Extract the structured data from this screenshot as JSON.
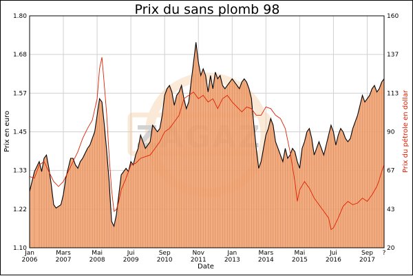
{
  "chart_data": {
    "type": "area",
    "title": "Prix du sans plomb 98",
    "xlabel": "Date",
    "ylabel_left": "Prix en euro",
    "ylabel_right": "Prix du pétrole en dollar",
    "y_left_ticks": [
      "1.10",
      "1.22",
      "1.33",
      "1.45",
      "1.57",
      "1.68",
      "1.80"
    ],
    "y_right_ticks": [
      "20",
      "43",
      "67",
      "90",
      "113",
      "137",
      "160"
    ],
    "ylim_left": [
      1.1,
      1.8
    ],
    "ylim_right": [
      20,
      160
    ],
    "x_ticks": [
      {
        "month": "Jan",
        "year": "2006",
        "t": 0
      },
      {
        "month": "Mars",
        "year": "2007",
        "t": 14
      },
      {
        "month": "Mai",
        "year": "2008",
        "t": 28
      },
      {
        "month": "Jui",
        "year": "2009",
        "t": 42
      },
      {
        "month": "Sep",
        "year": "2010",
        "t": 56
      },
      {
        "month": "Nov",
        "year": "2011",
        "t": 70
      },
      {
        "month": "Jan",
        "year": "2013",
        "t": 84
      },
      {
        "month": "Mars",
        "year": "2014",
        "t": 98
      },
      {
        "month": "Mai",
        "year": "2015",
        "t": 112
      },
      {
        "month": "Jui",
        "year": "2016",
        "t": 126
      },
      {
        "month": "Sep",
        "year": "2017",
        "t": 140
      },
      {
        "month": "?",
        "year": "",
        "t": 147
      }
    ],
    "x_range_months": [
      0,
      147
    ],
    "watermark": "ZAGAZ",
    "grid": true,
    "series": [
      {
        "color": "#000000",
        "fill": "#f0a070",
        "axis": "left",
        "points": [
          [
            0,
            1.27
          ],
          [
            2,
            1.33
          ],
          [
            4,
            1.36
          ],
          [
            5,
            1.33
          ],
          [
            6,
            1.37
          ],
          [
            7,
            1.38
          ],
          [
            8,
            1.34
          ],
          [
            9,
            1.29
          ],
          [
            10,
            1.23
          ],
          [
            11,
            1.22
          ],
          [
            12,
            1.225
          ],
          [
            13,
            1.23
          ],
          [
            14,
            1.26
          ],
          [
            15,
            1.31
          ],
          [
            16,
            1.34
          ],
          [
            17,
            1.37
          ],
          [
            18,
            1.37
          ],
          [
            19,
            1.35
          ],
          [
            20,
            1.34
          ],
          [
            21,
            1.36
          ],
          [
            22,
            1.37
          ],
          [
            23,
            1.385
          ],
          [
            24,
            1.4
          ],
          [
            25,
            1.41
          ],
          [
            26,
            1.43
          ],
          [
            27,
            1.45
          ],
          [
            28,
            1.5
          ],
          [
            29,
            1.55
          ],
          [
            30,
            1.54
          ],
          [
            31,
            1.47
          ],
          [
            32,
            1.39
          ],
          [
            33,
            1.3
          ],
          [
            34,
            1.18
          ],
          [
            35,
            1.165
          ],
          [
            36,
            1.2
          ],
          [
            37,
            1.26
          ],
          [
            38,
            1.32
          ],
          [
            39,
            1.33
          ],
          [
            40,
            1.34
          ],
          [
            41,
            1.33
          ],
          [
            42,
            1.36
          ],
          [
            43,
            1.35
          ],
          [
            44,
            1.38
          ],
          [
            45,
            1.4
          ],
          [
            46,
            1.44
          ],
          [
            47,
            1.42
          ],
          [
            48,
            1.4
          ],
          [
            49,
            1.41
          ],
          [
            50,
            1.42
          ],
          [
            51,
            1.47
          ],
          [
            52,
            1.46
          ],
          [
            53,
            1.45
          ],
          [
            54,
            1.46
          ],
          [
            55,
            1.5
          ],
          [
            56,
            1.56
          ],
          [
            57,
            1.58
          ],
          [
            58,
            1.59
          ],
          [
            59,
            1.57
          ],
          [
            60,
            1.53
          ],
          [
            61,
            1.56
          ],
          [
            62,
            1.57
          ],
          [
            63,
            1.59
          ],
          [
            64,
            1.55
          ],
          [
            65,
            1.52
          ],
          [
            66,
            1.54
          ],
          [
            67,
            1.6
          ],
          [
            68,
            1.66
          ],
          [
            69,
            1.72
          ],
          [
            70,
            1.66
          ],
          [
            71,
            1.62
          ],
          [
            72,
            1.64
          ],
          [
            73,
            1.62
          ],
          [
            74,
            1.57
          ],
          [
            75,
            1.62
          ],
          [
            76,
            1.58
          ],
          [
            77,
            1.63
          ],
          [
            78,
            1.61
          ],
          [
            79,
            1.62
          ],
          [
            80,
            1.59
          ],
          [
            81,
            1.58
          ],
          [
            82,
            1.59
          ],
          [
            83,
            1.6
          ],
          [
            84,
            1.61
          ],
          [
            85,
            1.6
          ],
          [
            86,
            1.59
          ],
          [
            87,
            1.58
          ],
          [
            88,
            1.6
          ],
          [
            89,
            1.61
          ],
          [
            90,
            1.6
          ],
          [
            91,
            1.58
          ],
          [
            92,
            1.55
          ],
          [
            93,
            1.47
          ],
          [
            94,
            1.4
          ],
          [
            95,
            1.34
          ],
          [
            96,
            1.36
          ],
          [
            97,
            1.4
          ],
          [
            98,
            1.44
          ],
          [
            99,
            1.46
          ],
          [
            100,
            1.49
          ],
          [
            101,
            1.47
          ],
          [
            102,
            1.42
          ],
          [
            103,
            1.4
          ],
          [
            104,
            1.38
          ],
          [
            105,
            1.36
          ],
          [
            106,
            1.4
          ],
          [
            107,
            1.37
          ],
          [
            108,
            1.38
          ],
          [
            109,
            1.4
          ],
          [
            110,
            1.39
          ],
          [
            111,
            1.36
          ],
          [
            112,
            1.34
          ],
          [
            113,
            1.4
          ],
          [
            114,
            1.42
          ],
          [
            115,
            1.45
          ],
          [
            116,
            1.46
          ],
          [
            117,
            1.43
          ],
          [
            118,
            1.38
          ],
          [
            119,
            1.4
          ],
          [
            120,
            1.42
          ],
          [
            121,
            1.4
          ],
          [
            122,
            1.38
          ],
          [
            123,
            1.41
          ],
          [
            124,
            1.44
          ],
          [
            125,
            1.47
          ],
          [
            126,
            1.45
          ],
          [
            127,
            1.41
          ],
          [
            128,
            1.44
          ],
          [
            129,
            1.46
          ],
          [
            130,
            1.45
          ],
          [
            131,
            1.43
          ],
          [
            132,
            1.42
          ],
          [
            133,
            1.43
          ],
          [
            134,
            1.46
          ],
          [
            135,
            1.48
          ],
          [
            136,
            1.5
          ],
          [
            137,
            1.53
          ],
          [
            138,
            1.56
          ],
          [
            139,
            1.54
          ],
          [
            140,
            1.55
          ],
          [
            141,
            1.56
          ],
          [
            142,
            1.58
          ],
          [
            143,
            1.59
          ],
          [
            144,
            1.57
          ],
          [
            145,
            1.58
          ],
          [
            146,
            1.6
          ],
          [
            147,
            1.61
          ]
        ]
      },
      {
        "color": "#e02000",
        "axis": "right",
        "points": [
          [
            0,
            63
          ],
          [
            2,
            62
          ],
          [
            4,
            70
          ],
          [
            6,
            72
          ],
          [
            8,
            66
          ],
          [
            10,
            60
          ],
          [
            12,
            57
          ],
          [
            14,
            60
          ],
          [
            16,
            66
          ],
          [
            18,
            72
          ],
          [
            20,
            78
          ],
          [
            22,
            86
          ],
          [
            24,
            92
          ],
          [
            26,
            97
          ],
          [
            28,
            110
          ],
          [
            29,
            128
          ],
          [
            30,
            135
          ],
          [
            31,
            118
          ],
          [
            32,
            100
          ],
          [
            33,
            75
          ],
          [
            34,
            55
          ],
          [
            35,
            42
          ],
          [
            36,
            43
          ],
          [
            37,
            48
          ],
          [
            38,
            55
          ],
          [
            40,
            62
          ],
          [
            42,
            70
          ],
          [
            44,
            71
          ],
          [
            46,
            74
          ],
          [
            48,
            75
          ],
          [
            50,
            76
          ],
          [
            52,
            80
          ],
          [
            54,
            84
          ],
          [
            56,
            90
          ],
          [
            58,
            92
          ],
          [
            60,
            96
          ],
          [
            62,
            100
          ],
          [
            64,
            110
          ],
          [
            66,
            112
          ],
          [
            68,
            114
          ],
          [
            70,
            110
          ],
          [
            72,
            112
          ],
          [
            74,
            108
          ],
          [
            76,
            110
          ],
          [
            78,
            104
          ],
          [
            80,
            110
          ],
          [
            82,
            112
          ],
          [
            84,
            108
          ],
          [
            86,
            105
          ],
          [
            88,
            102
          ],
          [
            90,
            105
          ],
          [
            92,
            104
          ],
          [
            94,
            100
          ],
          [
            96,
            100
          ],
          [
            98,
            105
          ],
          [
            100,
            104
          ],
          [
            102,
            100
          ],
          [
            104,
            98
          ],
          [
            106,
            92
          ],
          [
            108,
            78
          ],
          [
            110,
            60
          ],
          [
            111,
            48
          ],
          [
            112,
            55
          ],
          [
            114,
            60
          ],
          [
            116,
            56
          ],
          [
            118,
            50
          ],
          [
            120,
            46
          ],
          [
            122,
            42
          ],
          [
            124,
            38
          ],
          [
            125,
            31
          ],
          [
            126,
            32
          ],
          [
            128,
            38
          ],
          [
            130,
            45
          ],
          [
            132,
            48
          ],
          [
            134,
            46
          ],
          [
            136,
            47
          ],
          [
            138,
            50
          ],
          [
            140,
            48
          ],
          [
            142,
            52
          ],
          [
            144,
            57
          ],
          [
            145,
            61
          ],
          [
            146,
            66
          ],
          [
            147,
            70
          ]
        ]
      }
    ]
  }
}
